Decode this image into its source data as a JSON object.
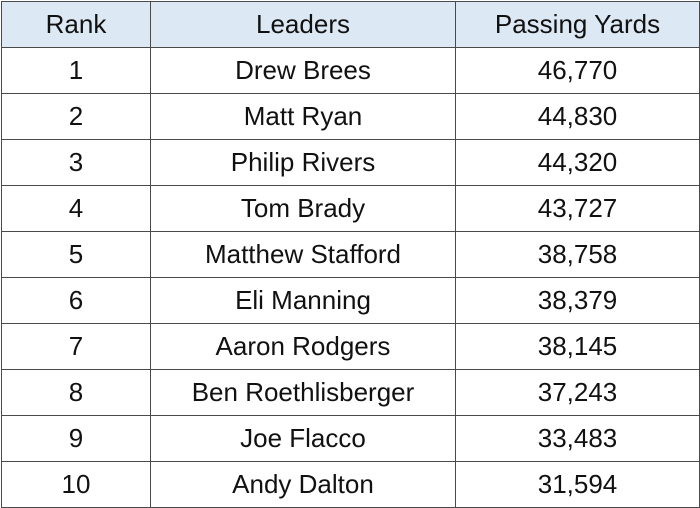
{
  "table": {
    "headers": [
      "Rank",
      "Leaders",
      "Passing Yards"
    ],
    "rows": [
      [
        1,
        "Drew Brees",
        "46,770"
      ],
      [
        2,
        "Matt Ryan",
        "44,830"
      ],
      [
        3,
        "Philip Rivers",
        "44,320"
      ],
      [
        4,
        "Tom Brady",
        "43,727"
      ],
      [
        5,
        "Matthew Stafford",
        "38,758"
      ],
      [
        6,
        "Eli Manning",
        "38,379"
      ],
      [
        7,
        "Aaron Rodgers",
        "38,145"
      ],
      [
        8,
        "Ben Roethlisberger",
        "37,243"
      ],
      [
        9,
        "Joe Flacco",
        "33,483"
      ],
      [
        10,
        "Andy Dalton",
        "31,594"
      ]
    ]
  }
}
